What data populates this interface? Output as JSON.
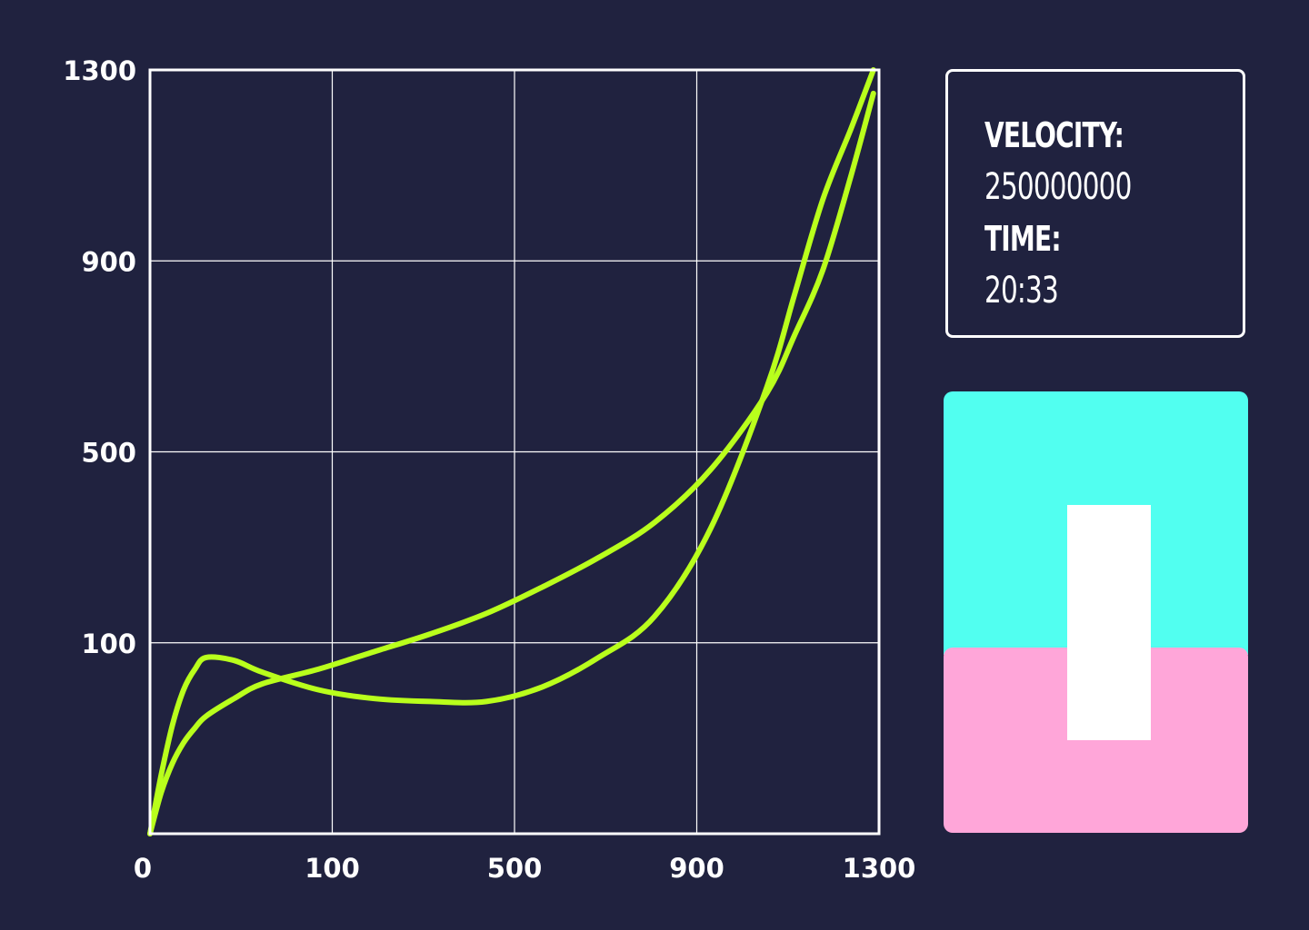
{
  "colors": {
    "background": "#20223f",
    "grid": "#ffffff",
    "curve": "#b9ff1c",
    "zone_top": "#51fff0",
    "zone_bottom": "#ffa6d9",
    "level_bar": "#ffffff"
  },
  "readout": {
    "velocity_label": "VELOCITY:",
    "velocity_value": "250000000",
    "time_label": "TIME:",
    "time_value": "20:33"
  },
  "chart_data": {
    "type": "line",
    "xlim": [
      0,
      1300
    ],
    "ylim": [
      0,
      1300
    ],
    "x_ticks": [
      "0",
      "100",
      "500",
      "900",
      "1300"
    ],
    "y_ticks": [
      "100",
      "500",
      "900",
      "1300"
    ],
    "grid": true,
    "legend": "none",
    "series": [
      {
        "x": [
          0,
          20,
          40,
          60,
          80,
          100,
          150,
          200,
          300,
          400,
          500,
          600,
          700,
          800,
          900,
          1000,
          1100,
          1150,
          1200,
          1250,
          1290
        ],
        "y": [
          0,
          100,
          185,
          245,
          280,
          300,
          295,
          275,
          245,
          230,
          225,
          225,
          250,
          300,
          370,
          520,
          760,
          920,
          1080,
          1200,
          1300
        ]
      },
      {
        "x": [
          0,
          20,
          40,
          60,
          80,
          100,
          150,
          200,
          300,
          400,
          500,
          600,
          700,
          800,
          900,
          1000,
          1100,
          1150,
          1200,
          1250,
          1290
        ],
        "y": [
          0,
          70,
          120,
          155,
          180,
          200,
          230,
          255,
          280,
          310,
          340,
          375,
          420,
          470,
          530,
          620,
          750,
          850,
          960,
          1120,
          1260
        ]
      }
    ]
  },
  "indicator": {
    "level_fraction": 0.58
  }
}
